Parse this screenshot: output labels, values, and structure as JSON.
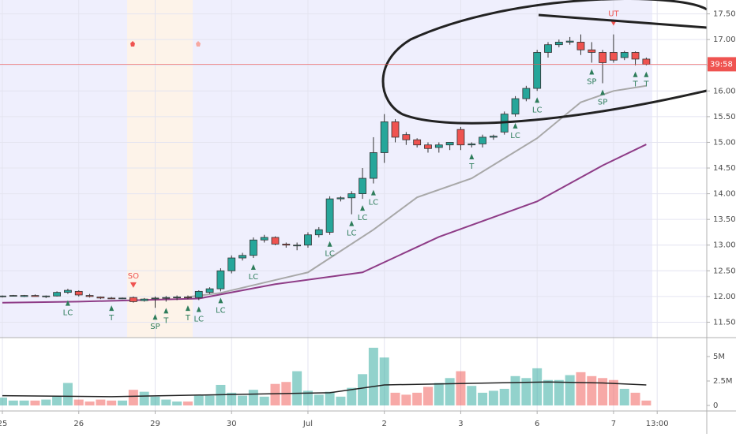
{
  "chart_data": {
    "type": "candlestick",
    "open": [
      12.0,
      12.01,
      12.0,
      12.02,
      12.0,
      12.01,
      12.08,
      12.1,
      12.02,
      11.99,
      11.97,
      11.96,
      11.98,
      11.92,
      11.97,
      11.97,
      11.98,
      11.99,
      11.98,
      12.08,
      12.15,
      12.5,
      12.75,
      12.8,
      13.1,
      13.15,
      13.02,
      13.0,
      13.0,
      13.2,
      13.25,
      13.9,
      13.92,
      14.0,
      14.3,
      14.8,
      15.4,
      15.15,
      15.05,
      14.95,
      14.9,
      14.95,
      15.25,
      14.95,
      14.97,
      15.1,
      15.2,
      15.55,
      15.85,
      16.05,
      16.75,
      16.9,
      16.95,
      16.95,
      16.8,
      16.75,
      16.75,
      16.65,
      16.75,
      16.62
    ],
    "high": [
      12.02,
      12.03,
      12.03,
      12.04,
      12.02,
      12.1,
      12.15,
      12.12,
      12.05,
      12.0,
      11.99,
      11.98,
      12.0,
      11.97,
      12.0,
      12.01,
      12.02,
      12.02,
      12.12,
      12.18,
      12.55,
      12.8,
      12.85,
      13.15,
      13.2,
      13.17,
      13.05,
      13.05,
      13.25,
      13.35,
      13.95,
      13.95,
      14.05,
      14.5,
      15.1,
      15.55,
      15.45,
      15.2,
      15.08,
      15.0,
      15.0,
      15.0,
      15.3,
      15.0,
      15.15,
      15.15,
      15.6,
      15.9,
      16.1,
      16.8,
      16.95,
      17.0,
      17.05,
      17.1,
      16.95,
      16.8,
      17.1,
      16.78,
      16.77,
      16.65
    ],
    "low": [
      11.98,
      12.0,
      11.99,
      12.0,
      11.97,
      12.0,
      12.05,
      12.0,
      11.98,
      11.95,
      11.95,
      11.95,
      11.88,
      11.9,
      11.78,
      11.9,
      11.93,
      11.95,
      11.93,
      12.05,
      12.1,
      12.45,
      12.7,
      12.75,
      13.05,
      13.0,
      12.95,
      12.9,
      12.95,
      13.15,
      13.2,
      13.85,
      13.6,
      13.9,
      14.2,
      14.6,
      15.0,
      14.95,
      14.9,
      14.8,
      14.8,
      14.85,
      14.85,
      14.9,
      14.9,
      15.05,
      15.15,
      15.5,
      15.8,
      16.0,
      16.65,
      16.85,
      16.9,
      16.7,
      16.55,
      16.15,
      16.55,
      16.6,
      16.5,
      16.5
    ],
    "close": [
      12.01,
      12.02,
      12.02,
      12.0,
      12.01,
      12.08,
      12.12,
      12.03,
      12.0,
      11.97,
      11.96,
      11.97,
      11.9,
      11.95,
      11.97,
      11.98,
      11.99,
      11.98,
      12.1,
      12.15,
      12.5,
      12.75,
      12.8,
      13.1,
      13.15,
      13.02,
      13.0,
      13.0,
      13.2,
      13.3,
      13.9,
      13.92,
      14.0,
      14.3,
      14.8,
      15.4,
      15.1,
      15.05,
      14.95,
      14.88,
      14.95,
      15.0,
      14.95,
      14.97,
      15.1,
      15.12,
      15.55,
      15.85,
      16.05,
      16.75,
      16.9,
      16.95,
      16.97,
      16.8,
      16.75,
      16.55,
      16.6,
      16.75,
      16.62,
      16.52
    ],
    "volume": [
      0.8,
      0.5,
      0.5,
      0.5,
      0.6,
      0.9,
      2.3,
      0.6,
      0.4,
      0.6,
      0.5,
      0.5,
      1.6,
      1.4,
      0.9,
      0.6,
      0.4,
      0.4,
      1.0,
      1.0,
      2.1,
      1.3,
      1.0,
      1.6,
      0.9,
      2.2,
      2.4,
      3.5,
      1.5,
      1.1,
      1.4,
      0.9,
      1.8,
      3.2,
      5.9,
      4.9,
      1.3,
      1.1,
      1.3,
      1.9,
      2.3,
      2.8,
      3.5,
      2.0,
      1.3,
      1.5,
      1.7,
      3.0,
      2.8,
      3.8,
      2.6,
      2.6,
      3.1,
      3.4,
      3.0,
      2.8,
      2.6,
      1.7,
      1.3,
      0.5
    ],
    "up_color": "#26a69a",
    "down_color": "#ef5350",
    "moving_averages": [
      {
        "color": "#a8a8a8",
        "x": [
          17,
          20,
          28,
          34,
          38,
          43,
          49,
          53,
          56,
          59
        ],
        "values": [
          11.99,
          12.07,
          12.47,
          13.3,
          13.93,
          14.3,
          15.08,
          15.78,
          16.0,
          16.1
        ]
      },
      {
        "color": "#8e3c87",
        "x": [
          0,
          7,
          18,
          25,
          33,
          40,
          49,
          55,
          59
        ],
        "values": [
          11.88,
          11.9,
          11.96,
          12.24,
          12.47,
          13.16,
          13.85,
          14.55,
          14.96
        ]
      }
    ],
    "volume_ma": {
      "color": "#222222",
      "x": [
        0,
        10,
        20,
        30,
        35,
        40,
        50,
        55,
        59
      ],
      "values": [
        1.0,
        0.9,
        1.1,
        1.3,
        2.1,
        2.2,
        2.4,
        2.3,
        2.1
      ]
    },
    "signals": [
      {
        "bar": 6,
        "label": "LC"
      },
      {
        "bar": 10,
        "label": "T"
      },
      {
        "bar": 14,
        "label": "SP"
      },
      {
        "bar": 15,
        "label": "T"
      },
      {
        "bar": 17,
        "label": "T"
      },
      {
        "bar": 18,
        "label": "LC"
      },
      {
        "bar": 20,
        "label": "LC"
      },
      {
        "bar": 23,
        "label": "LC"
      },
      {
        "bar": 30,
        "label": "LC"
      },
      {
        "bar": 32,
        "label": "LC"
      },
      {
        "bar": 33,
        "label": "LC"
      },
      {
        "bar": 34,
        "label": "LC"
      },
      {
        "bar": 43,
        "label": "T"
      },
      {
        "bar": 47,
        "label": "LC"
      },
      {
        "bar": 49,
        "label": "LC"
      },
      {
        "bar": 54,
        "label": "SP"
      },
      {
        "bar": 55,
        "label": "SP"
      },
      {
        "bar": 58,
        "label": "T"
      },
      {
        "bar": 59,
        "label": "T"
      },
      {
        "bar": 12,
        "label": "SO",
        "position": "above"
      },
      {
        "bar": 56,
        "label": "UT",
        "position": "above"
      }
    ],
    "countdown": "39:58",
    "ylim": [
      11.2,
      17.77
    ],
    "yticks": [
      {
        "value": 11.5,
        "label": "11.50"
      },
      {
        "value": 12,
        "label": "12.00"
      },
      {
        "value": 12.5,
        "label": "12.50"
      },
      {
        "value": 13,
        "label": "13.00"
      },
      {
        "value": 13.5,
        "label": "13.50"
      },
      {
        "value": 14,
        "label": "14.00"
      },
      {
        "value": 14.5,
        "label": "14.50"
      },
      {
        "value": 15,
        "label": "15.00"
      },
      {
        "value": 15.5,
        "label": "15.50"
      },
      {
        "value": 16,
        "label": "16.00"
      },
      {
        "value": 16.5,
        "label": "16.50"
      },
      {
        "value": 17,
        "label": "17.00"
      },
      {
        "value": 17.5,
        "label": "17.50"
      }
    ],
    "y2ticks": [
      0,
      {
        "value": 2.5,
        "label": "2.5M"
      },
      {
        "value": 5,
        "label": "5M"
      }
    ],
    "xticks": [
      {
        "value": 0,
        "label": "25"
      },
      {
        "value": 7,
        "label": "26"
      },
      {
        "value": 14,
        "label": "29"
      },
      {
        "value": 21,
        "label": "30"
      },
      {
        "value": 28,
        "label": "Jul"
      },
      {
        "value": 35,
        "label": "2"
      },
      {
        "value": 42,
        "label": "3"
      },
      {
        "value": 49,
        "label": "6"
      },
      {
        "value": 56,
        "label": "7"
      },
      {
        "value": 60,
        "label": "13:00"
      }
    ],
    "grid": true
  }
}
